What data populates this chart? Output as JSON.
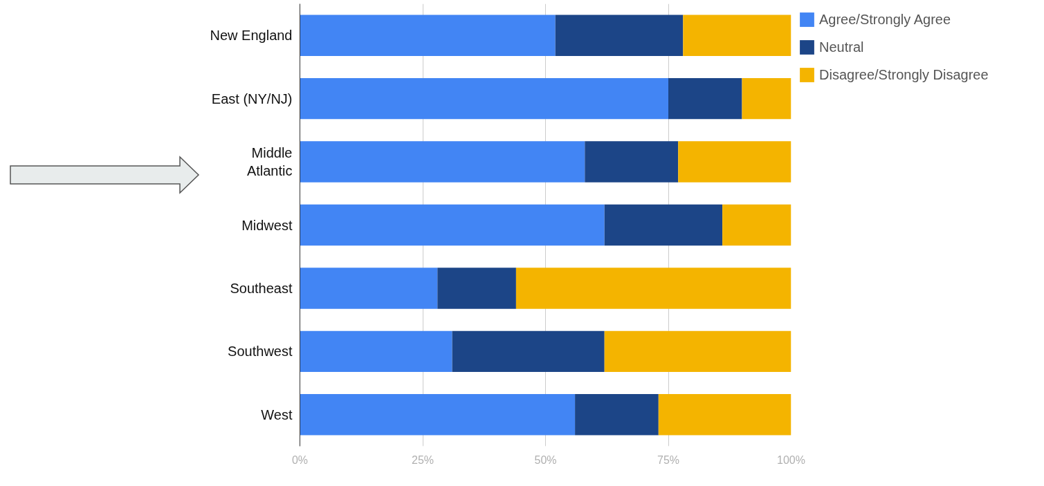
{
  "chart_data": {
    "type": "bar",
    "orientation": "horizontal",
    "stacked": true,
    "categories": [
      "New England",
      "East (NY/NJ)",
      "Middle\nAtlantic",
      "Midwest",
      "Southeast",
      "Southwest",
      "West"
    ],
    "series": [
      {
        "name": "Agree/Strongly Agree",
        "color": "#4285f4",
        "values": [
          52,
          75,
          58,
          62,
          28,
          31,
          56
        ]
      },
      {
        "name": "Neutral",
        "color": "#1c4587",
        "values": [
          26,
          15,
          19,
          24,
          16,
          31,
          17
        ]
      },
      {
        "name": "Disagree/Strongly Disagree",
        "color": "#f4b400",
        "values": [
          22,
          10,
          23,
          14,
          56,
          38,
          27
        ]
      }
    ],
    "xlim": [
      0,
      100
    ],
    "xticks": [
      {
        "value": 0,
        "label": "0%"
      },
      {
        "value": 25,
        "label": "25%"
      },
      {
        "value": 50,
        "label": "50%"
      },
      {
        "value": 75,
        "label": "75%"
      },
      {
        "value": 100,
        "label": "100%"
      }
    ],
    "grid": "x",
    "legend": "top right"
  }
}
